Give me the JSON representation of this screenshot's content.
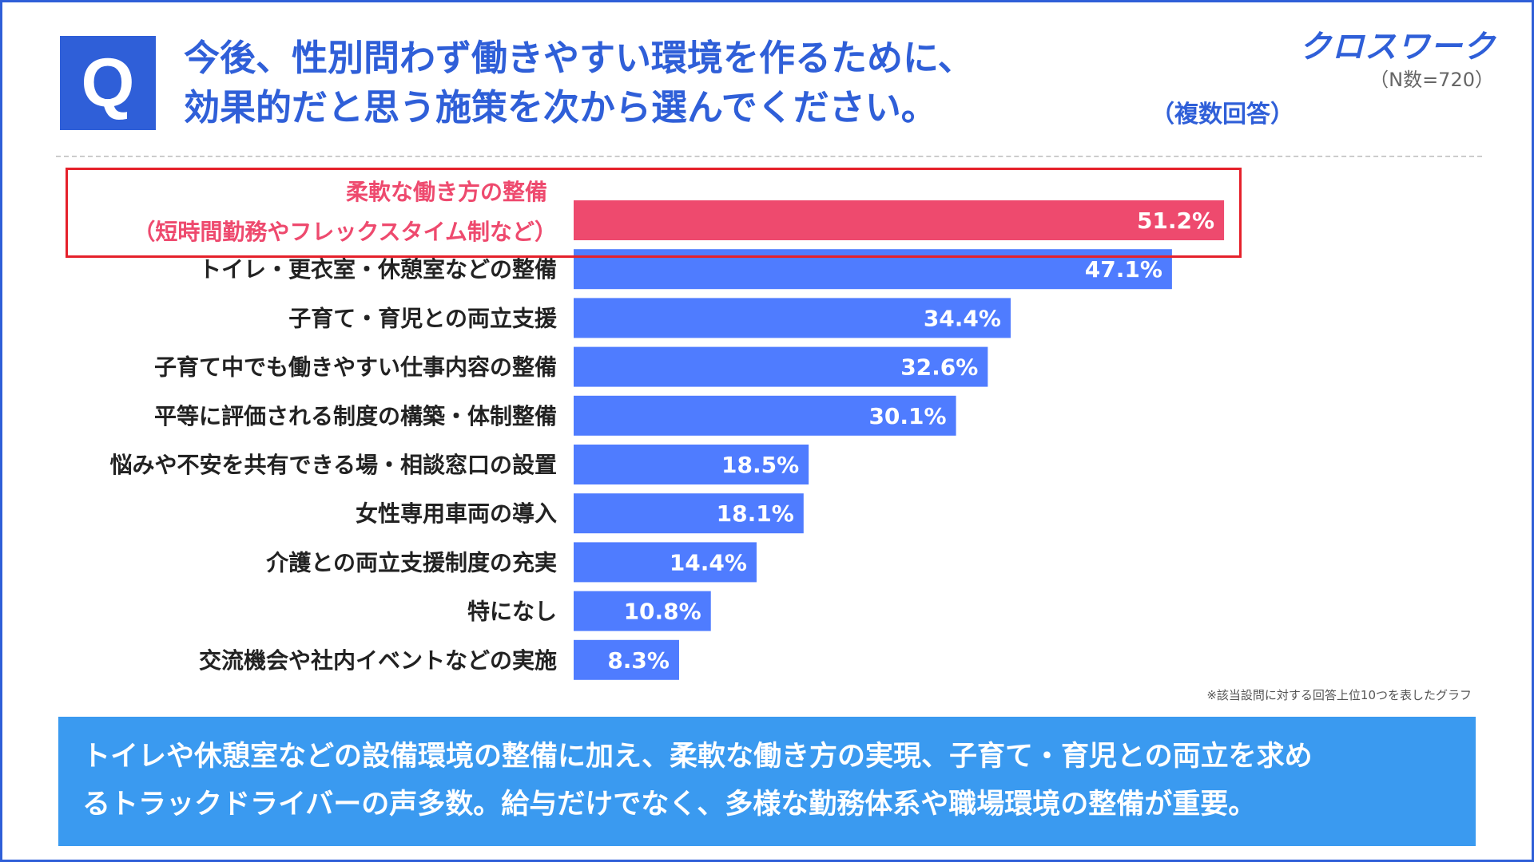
{
  "header": {
    "q_label": "Q",
    "title_line1": "今後、性別問わず働きやすい環境を作るために、",
    "title_line2": "効果的だと思う施策を次から選んでください。",
    "multi_answer": "（複数回答）",
    "brand": "クロスワーク",
    "sample_size": "（N数=720）"
  },
  "colors": {
    "primary": "#2f5fd8",
    "bar": "#4f7cff",
    "highlight_bar": "#ee4a6e",
    "highlight_border": "#e5212b",
    "summary_bg": "#3a9af0"
  },
  "chart_data": {
    "type": "bar",
    "orientation": "horizontal",
    "title": "今後、性別問わず働きやすい環境を作るために、効果的だと思う施策を次から選んでください。",
    "unit": "%",
    "xlim": [
      0,
      100
    ],
    "highlight_index": 0,
    "categories": [
      [
        "柔軟な働き方の整備",
        "（短時間勤務やフレックスタイム制など）"
      ],
      [
        "トイレ・更衣室・休憩室などの整備"
      ],
      [
        "子育て・育児との両立支援"
      ],
      [
        "子育て中でも働きやすい仕事内容の整備"
      ],
      [
        "平等に評価される制度の構築・体制整備"
      ],
      [
        "悩みや不安を共有できる場・相談窓口の設置"
      ],
      [
        "女性専用車両の導入"
      ],
      [
        "介護との両立支援制度の充実"
      ],
      [
        "特になし"
      ],
      [
        "交流機会や社内イベントなどの実施"
      ]
    ],
    "values": [
      51.2,
      47.1,
      34.4,
      32.6,
      30.1,
      18.5,
      18.1,
      14.4,
      10.8,
      8.3
    ],
    "value_labels": [
      "51.2%",
      "47.1%",
      "34.4%",
      "32.6%",
      "30.1%",
      "18.5%",
      "18.1%",
      "14.4%",
      "10.8%",
      "8.3%"
    ]
  },
  "footnote": "※該当設問に対する回答上位10つを表したグラフ",
  "summary": {
    "line1": "トイレや休憩室などの設備環境の整備に加え、柔軟な働き方の実現、子育て・育児との両立を求め",
    "line2": "るトラックドライバーの声多数。給与だけでなく、多様な勤務体系や職場環境の整備が重要。"
  }
}
